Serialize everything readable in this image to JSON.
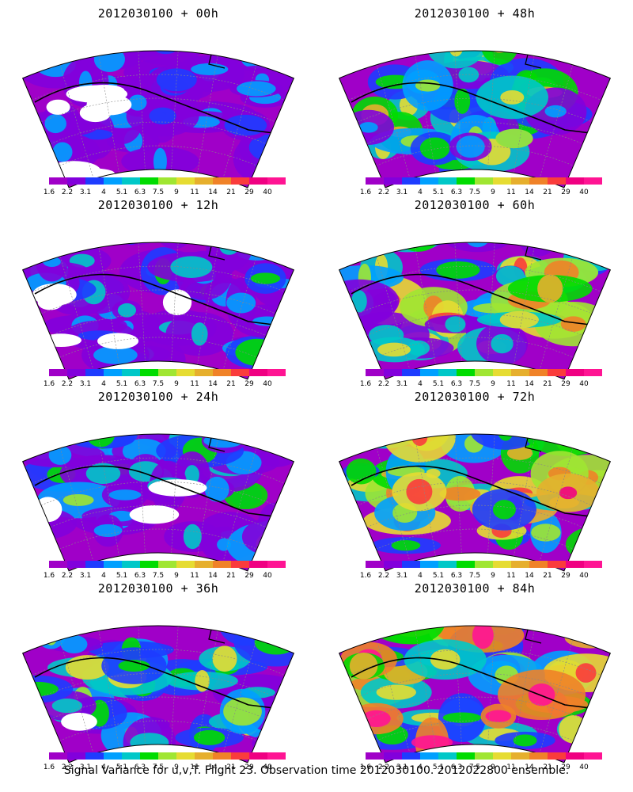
{
  "figure": {
    "caption": "Signal Variance for u,v,T. Flight 23. Observation time 2012030100. 2012022800 ensemble."
  },
  "panels": [
    {
      "title": "2012030100 + 00h",
      "lead_hours": 0,
      "intensity": 0.15
    },
    {
      "title": "2012030100 + 48h",
      "lead_hours": 48,
      "intensity": 0.55
    },
    {
      "title": "2012030100 + 12h",
      "lead_hours": 12,
      "intensity": 0.25
    },
    {
      "title": "2012030100 + 60h",
      "lead_hours": 60,
      "intensity": 0.65
    },
    {
      "title": "2012030100 + 24h",
      "lead_hours": 24,
      "intensity": 0.35
    },
    {
      "title": "2012030100 + 72h",
      "lead_hours": 72,
      "intensity": 0.75
    },
    {
      "title": "2012030100 + 36h",
      "lead_hours": 36,
      "intensity": 0.45
    },
    {
      "title": "2012030100 + 84h",
      "lead_hours": 84,
      "intensity": 0.9
    }
  ],
  "colorbar": {
    "labels": [
      "1.6",
      "2.2",
      "3.1",
      "4",
      "5.1",
      "6.3",
      "7.5",
      "9",
      "11",
      "14",
      "21",
      "29",
      "40"
    ],
    "colors": [
      "#a000c8",
      "#8200dc",
      "#1e3cff",
      "#00a0ff",
      "#00c8c8",
      "#00dc00",
      "#a0e632",
      "#e6dc32",
      "#e6af2d",
      "#f08228",
      "#fa3c3c",
      "#f00082",
      "#ff1493"
    ]
  }
}
